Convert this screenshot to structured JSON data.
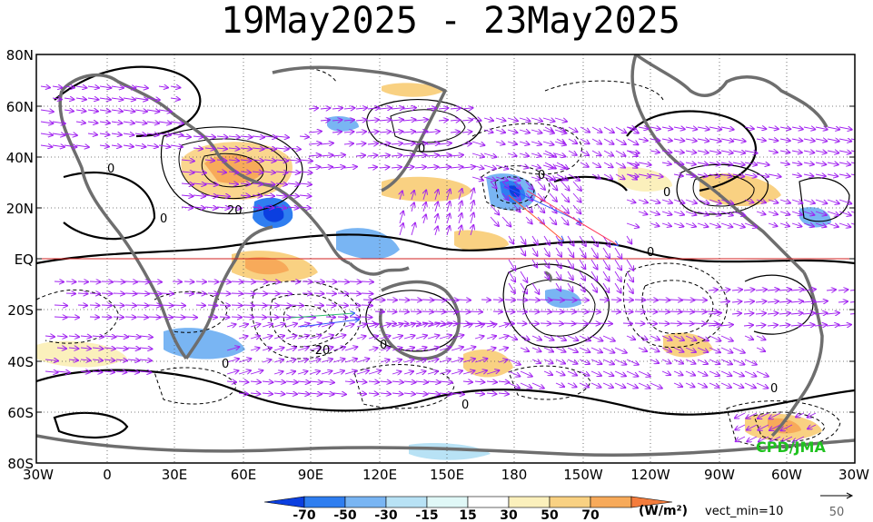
{
  "title": "19May2025 - 23May2025",
  "lat_labels": [
    "80N",
    "60N",
    "40N",
    "20N",
    "EQ",
    "20S",
    "40S",
    "60S",
    "80S"
  ],
  "lon_labels": [
    "30W",
    "0",
    "30E",
    "60E",
    "90E",
    "120E",
    "150E",
    "180",
    "150W",
    "120W",
    "90W",
    "60W",
    "30W"
  ],
  "colorbar": {
    "tick_labels": [
      "-70",
      "-50",
      "-30",
      "-15",
      "15",
      "30",
      "50",
      "70"
    ],
    "colors": [
      "#0b3fe0",
      "#2f7ef0",
      "#79b5f3",
      "#b8e2f5",
      "#e0f8f7",
      "#ffffff",
      "#fbf0bc",
      "#f9d182",
      "#f7aa5a",
      "#f47c3c"
    ],
    "unit": "(W/m²)",
    "vector_note": "vect_min=10"
  },
  "reference_vector": {
    "value": "50"
  },
  "contour_labels": [
    "0",
    "0",
    "0",
    "0",
    "0",
    "0",
    "0",
    "0",
    "0",
    "0",
    "20",
    "-20"
  ],
  "credit": "CPD/JMA",
  "colors": {
    "vector_main": "#a020f0",
    "coast": "#6e6e6e",
    "equator": "#d02020"
  }
}
